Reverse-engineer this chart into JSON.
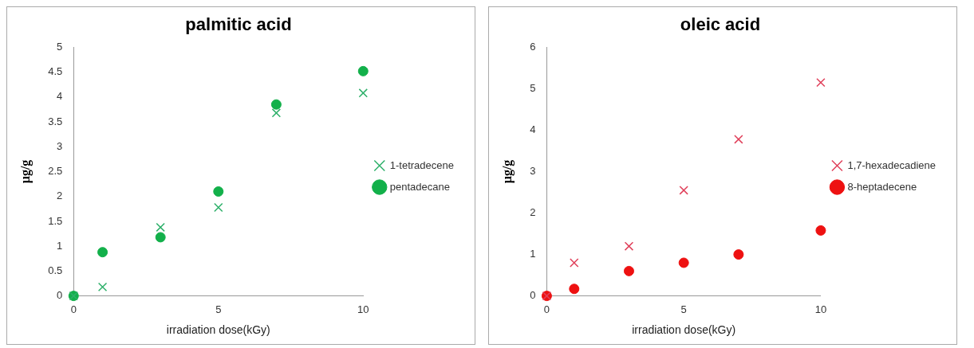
{
  "chart_data": [
    {
      "type": "scatter",
      "title": "palmitic acid",
      "xlabel": "irradiation dose(kGy)",
      "ylabel": "µg/g",
      "x": [
        0,
        1,
        3,
        5,
        7,
        10
      ],
      "xlim": [
        0,
        10
      ],
      "xticks": [
        0,
        5,
        10
      ],
      "ylim": [
        0,
        5
      ],
      "yticks": [
        0,
        0.5,
        1,
        1.5,
        2,
        2.5,
        3,
        3.5,
        4,
        4.5,
        5
      ],
      "grid": false,
      "legend": "right",
      "series": [
        {
          "name": "1-tetradecene",
          "color": "#2eb06a",
          "marker": "cross",
          "values": [
            0,
            0.18,
            1.38,
            1.78,
            3.68,
            4.08
          ]
        },
        {
          "name": "pentadecane",
          "color": "#12b04a",
          "marker": "circle",
          "values": [
            0,
            0.88,
            1.18,
            2.1,
            3.85,
            4.52
          ]
        }
      ]
    },
    {
      "type": "scatter",
      "title": "oleic acid",
      "xlabel": "irradiation dose(kGy)",
      "ylabel": "µg/g",
      "x": [
        0,
        1,
        3,
        5,
        7,
        10
      ],
      "xlim": [
        0,
        10
      ],
      "xticks": [
        0,
        5,
        10
      ],
      "ylim": [
        0,
        6
      ],
      "yticks": [
        0,
        1,
        2,
        3,
        4,
        5,
        6
      ],
      "grid": false,
      "legend": "right",
      "series": [
        {
          "name": "1,7-hexadecadiene",
          "color": "#e0405a",
          "marker": "cross",
          "values": [
            0,
            0.8,
            1.2,
            2.55,
            3.78,
            5.15
          ]
        },
        {
          "name": "8-heptadecene",
          "color": "#ee1111",
          "marker": "circle",
          "values": [
            0,
            0.17,
            0.6,
            0.8,
            1.0,
            1.58
          ]
        }
      ]
    }
  ]
}
